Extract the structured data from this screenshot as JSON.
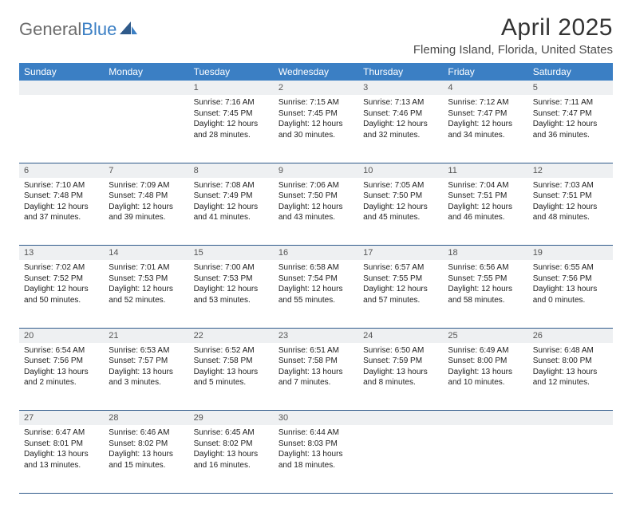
{
  "logo": {
    "text1": "General",
    "text2": "Blue"
  },
  "title": "April 2025",
  "subtitle": "Fleming Island, Florida, United States",
  "colors": {
    "header_bg": "#3b7fc4",
    "header_text": "#ffffff",
    "daynum_bg": "#eef0f2",
    "border": "#2f5a8a",
    "logo_gray": "#6b6b6b",
    "logo_blue": "#3b7fc4"
  },
  "day_headers": [
    "Sunday",
    "Monday",
    "Tuesday",
    "Wednesday",
    "Thursday",
    "Friday",
    "Saturday"
  ],
  "weeks": [
    {
      "nums": [
        "",
        "",
        "1",
        "2",
        "3",
        "4",
        "5"
      ],
      "cells": [
        null,
        null,
        {
          "sunrise": "Sunrise: 7:16 AM",
          "sunset": "Sunset: 7:45 PM",
          "daylight": "Daylight: 12 hours and 28 minutes."
        },
        {
          "sunrise": "Sunrise: 7:15 AM",
          "sunset": "Sunset: 7:45 PM",
          "daylight": "Daylight: 12 hours and 30 minutes."
        },
        {
          "sunrise": "Sunrise: 7:13 AM",
          "sunset": "Sunset: 7:46 PM",
          "daylight": "Daylight: 12 hours and 32 minutes."
        },
        {
          "sunrise": "Sunrise: 7:12 AM",
          "sunset": "Sunset: 7:47 PM",
          "daylight": "Daylight: 12 hours and 34 minutes."
        },
        {
          "sunrise": "Sunrise: 7:11 AM",
          "sunset": "Sunset: 7:47 PM",
          "daylight": "Daylight: 12 hours and 36 minutes."
        }
      ]
    },
    {
      "nums": [
        "6",
        "7",
        "8",
        "9",
        "10",
        "11",
        "12"
      ],
      "cells": [
        {
          "sunrise": "Sunrise: 7:10 AM",
          "sunset": "Sunset: 7:48 PM",
          "daylight": "Daylight: 12 hours and 37 minutes."
        },
        {
          "sunrise": "Sunrise: 7:09 AM",
          "sunset": "Sunset: 7:48 PM",
          "daylight": "Daylight: 12 hours and 39 minutes."
        },
        {
          "sunrise": "Sunrise: 7:08 AM",
          "sunset": "Sunset: 7:49 PM",
          "daylight": "Daylight: 12 hours and 41 minutes."
        },
        {
          "sunrise": "Sunrise: 7:06 AM",
          "sunset": "Sunset: 7:50 PM",
          "daylight": "Daylight: 12 hours and 43 minutes."
        },
        {
          "sunrise": "Sunrise: 7:05 AM",
          "sunset": "Sunset: 7:50 PM",
          "daylight": "Daylight: 12 hours and 45 minutes."
        },
        {
          "sunrise": "Sunrise: 7:04 AM",
          "sunset": "Sunset: 7:51 PM",
          "daylight": "Daylight: 12 hours and 46 minutes."
        },
        {
          "sunrise": "Sunrise: 7:03 AM",
          "sunset": "Sunset: 7:51 PM",
          "daylight": "Daylight: 12 hours and 48 minutes."
        }
      ]
    },
    {
      "nums": [
        "13",
        "14",
        "15",
        "16",
        "17",
        "18",
        "19"
      ],
      "cells": [
        {
          "sunrise": "Sunrise: 7:02 AM",
          "sunset": "Sunset: 7:52 PM",
          "daylight": "Daylight: 12 hours and 50 minutes."
        },
        {
          "sunrise": "Sunrise: 7:01 AM",
          "sunset": "Sunset: 7:53 PM",
          "daylight": "Daylight: 12 hours and 52 minutes."
        },
        {
          "sunrise": "Sunrise: 7:00 AM",
          "sunset": "Sunset: 7:53 PM",
          "daylight": "Daylight: 12 hours and 53 minutes."
        },
        {
          "sunrise": "Sunrise: 6:58 AM",
          "sunset": "Sunset: 7:54 PM",
          "daylight": "Daylight: 12 hours and 55 minutes."
        },
        {
          "sunrise": "Sunrise: 6:57 AM",
          "sunset": "Sunset: 7:55 PM",
          "daylight": "Daylight: 12 hours and 57 minutes."
        },
        {
          "sunrise": "Sunrise: 6:56 AM",
          "sunset": "Sunset: 7:55 PM",
          "daylight": "Daylight: 12 hours and 58 minutes."
        },
        {
          "sunrise": "Sunrise: 6:55 AM",
          "sunset": "Sunset: 7:56 PM",
          "daylight": "Daylight: 13 hours and 0 minutes."
        }
      ]
    },
    {
      "nums": [
        "20",
        "21",
        "22",
        "23",
        "24",
        "25",
        "26"
      ],
      "cells": [
        {
          "sunrise": "Sunrise: 6:54 AM",
          "sunset": "Sunset: 7:56 PM",
          "daylight": "Daylight: 13 hours and 2 minutes."
        },
        {
          "sunrise": "Sunrise: 6:53 AM",
          "sunset": "Sunset: 7:57 PM",
          "daylight": "Daylight: 13 hours and 3 minutes."
        },
        {
          "sunrise": "Sunrise: 6:52 AM",
          "sunset": "Sunset: 7:58 PM",
          "daylight": "Daylight: 13 hours and 5 minutes."
        },
        {
          "sunrise": "Sunrise: 6:51 AM",
          "sunset": "Sunset: 7:58 PM",
          "daylight": "Daylight: 13 hours and 7 minutes."
        },
        {
          "sunrise": "Sunrise: 6:50 AM",
          "sunset": "Sunset: 7:59 PM",
          "daylight": "Daylight: 13 hours and 8 minutes."
        },
        {
          "sunrise": "Sunrise: 6:49 AM",
          "sunset": "Sunset: 8:00 PM",
          "daylight": "Daylight: 13 hours and 10 minutes."
        },
        {
          "sunrise": "Sunrise: 6:48 AM",
          "sunset": "Sunset: 8:00 PM",
          "daylight": "Daylight: 13 hours and 12 minutes."
        }
      ]
    },
    {
      "nums": [
        "27",
        "28",
        "29",
        "30",
        "",
        "",
        ""
      ],
      "cells": [
        {
          "sunrise": "Sunrise: 6:47 AM",
          "sunset": "Sunset: 8:01 PM",
          "daylight": "Daylight: 13 hours and 13 minutes."
        },
        {
          "sunrise": "Sunrise: 6:46 AM",
          "sunset": "Sunset: 8:02 PM",
          "daylight": "Daylight: 13 hours and 15 minutes."
        },
        {
          "sunrise": "Sunrise: 6:45 AM",
          "sunset": "Sunset: 8:02 PM",
          "daylight": "Daylight: 13 hours and 16 minutes."
        },
        {
          "sunrise": "Sunrise: 6:44 AM",
          "sunset": "Sunset: 8:03 PM",
          "daylight": "Daylight: 13 hours and 18 minutes."
        },
        null,
        null,
        null
      ]
    }
  ]
}
